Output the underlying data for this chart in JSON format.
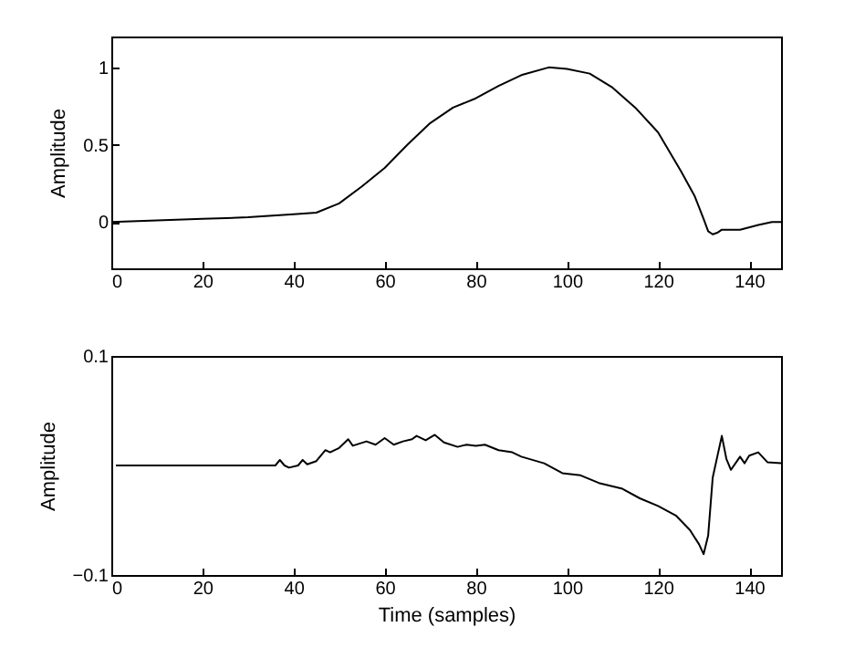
{
  "chart_data": [
    {
      "type": "line",
      "ylabel": "Amplitude",
      "xlim": [
        0,
        147
      ],
      "ylim": [
        -0.3,
        1.2
      ],
      "xticks": [
        0,
        20,
        40,
        60,
        80,
        100,
        120,
        140
      ],
      "yticks": [
        0,
        0.5,
        1
      ],
      "x": [
        0,
        10,
        20,
        30,
        40,
        45,
        50,
        55,
        60,
        65,
        70,
        75,
        80,
        85,
        90,
        96,
        100,
        105,
        110,
        115,
        120,
        125,
        128,
        130,
        131,
        132,
        133,
        134,
        138,
        142,
        145,
        147
      ],
      "series": [
        {
          "color": "#000000",
          "values": [
            0,
            0.01,
            0.02,
            0.03,
            0.05,
            0.06,
            0.12,
            0.23,
            0.35,
            0.5,
            0.64,
            0.74,
            0.8,
            0.88,
            0.95,
            1.0,
            0.99,
            0.96,
            0.87,
            0.74,
            0.58,
            0.33,
            0.17,
            0.02,
            -0.06,
            -0.08,
            -0.07,
            -0.05,
            -0.05,
            -0.02,
            0,
            0
          ]
        }
      ]
    },
    {
      "type": "line",
      "xlabel": "Time (samples)",
      "ylabel": "Amplitude",
      "xlim": [
        0,
        147
      ],
      "ylim": [
        -0.1,
        0.1
      ],
      "xticks": [
        0,
        20,
        40,
        60,
        80,
        100,
        120,
        140
      ],
      "yticks": [
        -0.1,
        0.1
      ],
      "x": [
        1,
        35,
        36,
        37,
        38,
        39,
        41,
        42,
        43,
        45,
        47,
        48,
        50,
        52,
        53,
        56,
        58,
        60,
        62,
        64,
        66,
        67,
        69,
        71,
        73,
        76,
        78,
        80,
        82,
        85,
        88,
        90,
        95,
        99,
        103,
        107,
        112,
        116,
        120,
        124,
        127,
        129,
        130,
        131,
        132,
        134,
        135,
        136,
        138,
        139,
        140,
        142,
        144,
        147
      ],
      "series": [
        {
          "color": "#000000",
          "values": [
            0,
            0,
            0,
            0.005,
            0,
            -0.002,
            0,
            0.005,
            0.001,
            0.004,
            0.014,
            0.012,
            0.016,
            0.024,
            0.018,
            0.022,
            0.019,
            0.025,
            0.019,
            0.022,
            0.024,
            0.027,
            0.023,
            0.028,
            0.021,
            0.017,
            0.019,
            0.018,
            0.019,
            0.014,
            0.012,
            0.008,
            0.002,
            -0.007,
            -0.009,
            -0.016,
            -0.021,
            -0.03,
            -0.037,
            -0.046,
            -0.059,
            -0.072,
            -0.081,
            -0.064,
            -0.011,
            0.027,
            0.006,
            -0.004,
            0.008,
            0.002,
            0.009,
            0.012,
            0.003,
            0.002
          ]
        }
      ]
    }
  ]
}
